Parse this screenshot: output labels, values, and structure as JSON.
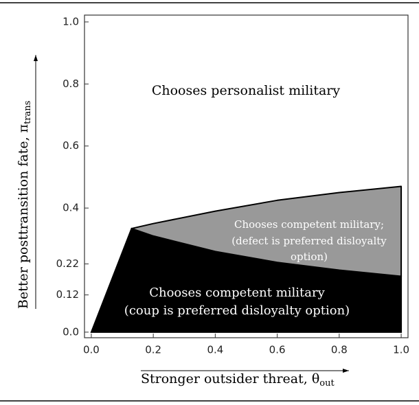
{
  "chart_data": {
    "type": "region",
    "xlabel": "Stronger outsider threat, θ",
    "xlabel_sub": "out",
    "ylabel": "Better posttransition fate, π",
    "ylabel_sub": "trans",
    "annotations": [
      "Chooses personalist military",
      "Chooses competent military;",
      "(defect is preferred disloyalty",
      "option)",
      "Chooses competent military",
      "(coup is preferred disloyalty option)"
    ],
    "x": [
      0,
      0.13,
      0.2,
      0.4,
      0.6,
      0.8,
      1.0
    ],
    "series": [
      {
        "color": "#000000",
        "values": [
          0,
          0.334,
          0.31,
          0.26,
          0.225,
          0.2,
          0.18
        ]
      },
      {
        "color": "#999999",
        "values": [
          null,
          0.334,
          0.35,
          0.39,
          0.425,
          0.45,
          0.47
        ]
      }
    ],
    "xlim": [
      -0.022,
      1.022
    ],
    "ylim": [
      -0.018,
      1.022
    ],
    "xticks": [
      {
        "value": 0,
        "label": "0.0"
      },
      0.2,
      0.4,
      0.6,
      0.8,
      {
        "value": 1,
        "label": "1.0"
      }
    ],
    "yticks": [
      {
        "value": 0,
        "label": "0.0"
      },
      0.12,
      0.22,
      0.4,
      0.6,
      0.8,
      {
        "value": 1,
        "label": "1.0"
      }
    ]
  }
}
